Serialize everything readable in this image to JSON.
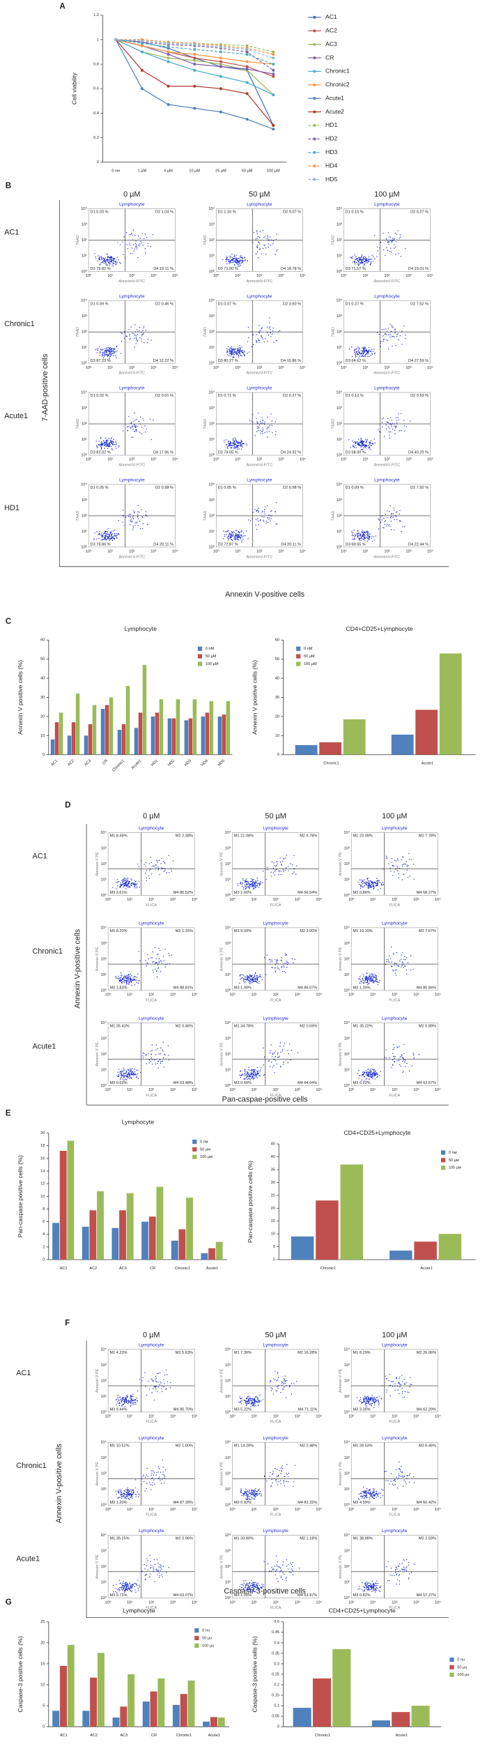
{
  "chart_data": [
    {
      "type": "line",
      "panel": "A",
      "ylabel": "Cell viability",
      "categories": [
        "0 nм",
        "1 µM",
        "5 µM",
        "10 µM",
        "25 µM",
        "50 µM",
        "100 µM"
      ],
      "ylim": [
        0,
        1.2
      ],
      "yticks": [
        0,
        0.2,
        0.4,
        0.6,
        0.8,
        1,
        1.2
      ],
      "legend": "right",
      "series": [
        {
          "name": "AC1",
          "color": "#4f6fb5",
          "style": "solid",
          "values": [
            1,
            0.98,
            0.93,
            0.85,
            0.78,
            0.75,
            0.3
          ]
        },
        {
          "name": "AC2",
          "color": "#c0504d",
          "style": "solid",
          "values": [
            1,
            0.95,
            0.9,
            0.85,
            0.82,
            0.78,
            0.7
          ]
        },
        {
          "name": "AC3",
          "color": "#9bbb59",
          "style": "solid",
          "values": [
            1,
            0.9,
            0.85,
            0.83,
            0.8,
            0.75,
            0.55
          ]
        },
        {
          "name": "CR",
          "color": "#7f5fa8",
          "style": "solid",
          "values": [
            1,
            0.95,
            0.88,
            0.8,
            0.78,
            0.76,
            0.72
          ]
        },
        {
          "name": "Chronic1",
          "color": "#4bacc6",
          "style": "solid",
          "values": [
            1,
            0.9,
            0.82,
            0.75,
            0.7,
            0.65,
            0.55
          ]
        },
        {
          "name": "Chronic2",
          "color": "#f79646",
          "style": "solid",
          "values": [
            1,
            0.95,
            0.9,
            0.88,
            0.85,
            0.82,
            0.8
          ]
        },
        {
          "name": "Acute1",
          "color": "#4f81bd",
          "style": "solid",
          "values": [
            1,
            0.6,
            0.47,
            0.44,
            0.41,
            0.35,
            0.27
          ]
        },
        {
          "name": "Acute2",
          "color": "#b03a2e",
          "style": "solid",
          "values": [
            1,
            0.75,
            0.62,
            0.62,
            0.6,
            0.56,
            0.3
          ]
        },
        {
          "name": "HD1",
          "color": "#9bbb59",
          "style": "dashed",
          "values": [
            1,
            1,
            0.98,
            0.97,
            0.96,
            0.95,
            0.9
          ]
        },
        {
          "name": "HD2",
          "color": "#8064a2",
          "style": "dashed",
          "values": [
            1,
            0.98,
            0.96,
            0.95,
            0.93,
            0.9,
            0.75
          ]
        },
        {
          "name": "HD3",
          "color": "#4bacc6",
          "style": "dashed",
          "values": [
            1,
            0.97,
            0.94,
            0.92,
            0.9,
            0.88,
            0.8
          ]
        },
        {
          "name": "HD4",
          "color": "#f79646",
          "style": "dashed",
          "values": [
            1,
            1,
            0.98,
            0.97,
            0.95,
            0.93,
            0.88
          ]
        },
        {
          "name": "HD5",
          "color": "#95b3d7",
          "style": "dashed",
          "values": [
            1,
            0.99,
            0.97,
            0.96,
            0.94,
            0.92,
            0.85
          ]
        }
      ]
    },
    {
      "type": "bar",
      "panel": "C",
      "title": "Lymphocyte",
      "ylabel": "Annexin V positive cells (%)",
      "categories": [
        "AC1",
        "AC2",
        "AC3",
        "CR",
        "Chronic1",
        "Acute1",
        "HD1",
        "HD2",
        "HD3",
        "HD4",
        "HD5"
      ],
      "xtick_rotation": 45,
      "ylim": [
        0,
        60
      ],
      "yticks": [
        0,
        10,
        20,
        30,
        40,
        50,
        60
      ],
      "legend": "upper right",
      "series": [
        {
          "name": "0 nM",
          "color": "#4f81bd",
          "values": [
            8,
            10,
            10,
            24,
            13,
            14,
            20,
            19,
            18,
            20,
            20
          ]
        },
        {
          "name": "50 µM",
          "color": "#c0504d",
          "values": [
            17,
            17,
            16,
            26,
            16,
            22,
            22,
            19,
            19,
            22,
            21
          ]
        },
        {
          "name": "100 µM",
          "color": "#9bbb59",
          "values": [
            22,
            32,
            26,
            30,
            36,
            47,
            29,
            29,
            29,
            28,
            28
          ]
        }
      ]
    },
    {
      "type": "bar",
      "title": "CD4+CD25+Lymphocyte",
      "ylabel": "Annexin V positive cells (%)",
      "categories": [
        "Chronic1",
        "Acute1"
      ],
      "ylim": [
        0,
        60
      ],
      "yticks": [
        0,
        10,
        20,
        30,
        40,
        50,
        60
      ],
      "legend": "upper left",
      "series": [
        {
          "name": "0 nM",
          "color": "#4f81bd",
          "values": [
            5,
            10.5
          ]
        },
        {
          "name": "50 µM",
          "color": "#c0504d",
          "values": [
            6.5,
            23.5
          ]
        },
        {
          "name": "100 µM",
          "color": "#9bbb59",
          "values": [
            18.5,
            53
          ]
        }
      ]
    },
    {
      "type": "bar",
      "panel": "E",
      "title": "Lymphocyte",
      "ylabel": "Pan-caspase positive cells (%)",
      "categories": [
        "AC1",
        "AC2",
        "AC3",
        "CR",
        "Chronic1",
        "Acute1"
      ],
      "ylim": [
        0,
        20
      ],
      "yticks": [
        0,
        2,
        4,
        6,
        8,
        10,
        12,
        14,
        16,
        18,
        20
      ],
      "legend": "upper right",
      "series": [
        {
          "name": "0 nм",
          "color": "#4f81bd",
          "values": [
            5.8,
            5.2,
            5,
            6,
            3,
            1
          ]
        },
        {
          "name": "50 µм",
          "color": "#c0504d",
          "values": [
            17.2,
            7.8,
            7.8,
            6.8,
            4.8,
            1.8
          ]
        },
        {
          "name": "100 µм",
          "color": "#9bbb59",
          "values": [
            18.8,
            10.8,
            10.5,
            11.5,
            9.8,
            2.8
          ]
        }
      ]
    },
    {
      "type": "bar",
      "title": "CD4+CD25+Lymphocyte",
      "ylabel": "Pan-caspase positive cells (%)",
      "categories": [
        "Chronic1",
        "Acute1"
      ],
      "ylim": [
        0,
        45
      ],
      "yticks": [
        0,
        5,
        10,
        15,
        20,
        25,
        30,
        35,
        40,
        45
      ],
      "legend": "upper right",
      "series": [
        {
          "name": "0 nм",
          "color": "#4f81bd",
          "values": [
            9,
            3.5
          ]
        },
        {
          "name": "50 µм",
          "color": "#c0504d",
          "values": [
            23,
            7
          ]
        },
        {
          "name": "100 µм",
          "color": "#9bbb59",
          "values": [
            37,
            10
          ]
        }
      ]
    },
    {
      "type": "bar",
      "panel": "G",
      "title": "Lymphocyte",
      "ylabel": "Caspase-3 positive cells (%)",
      "categories": [
        "AC1",
        "AC2",
        "AC3",
        "CR",
        "Chronic1",
        "Acute1"
      ],
      "ylim": [
        0,
        25
      ],
      "yticks": [
        0,
        5,
        10,
        15,
        20,
        25
      ],
      "legend": "upper right",
      "series": [
        {
          "name": "0 nu",
          "color": "#4f81bd",
          "values": [
            3.8,
            3.8,
            2.2,
            6,
            5.2,
            1.2
          ]
        },
        {
          "name": "50 µu",
          "color": "#c0504d",
          "values": [
            14.5,
            11.7,
            4.8,
            8.4,
            7.8,
            2.3
          ]
        },
        {
          "name": "100 µu",
          "color": "#9bbb59",
          "values": [
            19.5,
            17.6,
            12.5,
            11.5,
            11,
            2.2
          ]
        }
      ]
    },
    {
      "type": "bar",
      "title": "CD4+CD25+Lymphocyte",
      "ylabel": "Caspase-3 positive cells (%)",
      "categories": [
        "Chronic1",
        "Acute1"
      ],
      "ylim": [
        0,
        0.5
      ],
      "yticks": [
        0,
        0.05,
        0.1,
        0.15,
        0.2,
        0.25,
        0.3,
        0.35,
        0.4,
        0.45,
        0.5
      ],
      "legend": "right",
      "series": [
        {
          "name": "0 nu",
          "color": "#4f81bd",
          "values": [
            0.09,
            0.03
          ]
        },
        {
          "name": "50 µu",
          "color": "#c0504d",
          "values": [
            0.23,
            0.07
          ]
        },
        {
          "name": "100 µu",
          "color": "#9bbb59",
          "values": [
            0.37,
            0.1
          ]
        }
      ]
    }
  ],
  "flow_ticks": [
    "10⁰",
    "10¹",
    "10²",
    "10³",
    "10⁴"
  ],
  "flow_panels": [
    {
      "panel": "B",
      "columns": [
        "0 µM",
        "50 µM",
        "100 µM"
      ],
      "x_axis": "AnnexinV-FITC",
      "y_axis": "7AAD",
      "side_label": "7-AAD-positive cells",
      "bottom_label": "Annexin V-positive cells",
      "rows": [
        {
          "name": "AC1",
          "plots": [
            {
              "title": "Lymphocyte",
              "quadrants": [
                "D1 0.03 %",
                "D2 1.04 %",
                "D3 79.82 %",
                "D4 19.11 %"
              ]
            },
            {
              "title": "Lymphocyte",
              "quadrants": [
                "D1 1.16 %",
                "D2 9.07 %",
                "D3 71.00 %",
                "D4 18.78 %"
              ]
            },
            {
              "title": "Lymphocyte",
              "quadrants": [
                "D1 0.15 %",
                "D2 5.27 %",
                "D3 71.57 %",
                "D4 23.01 %"
              ]
            }
          ]
        },
        {
          "name": "Chronic1",
          "plots": [
            {
              "title": "Lymphocyte",
              "quadrants": [
                "D1 0.09 %",
                "D2 0.46 %",
                "D3 87.23 %",
                "D4 12.22 %"
              ]
            },
            {
              "title": "Lymphocyte",
              "quadrants": [
                "D1 0.07 %",
                "D2 3.60 %",
                "D3 80.27 %",
                "D4 15.86 %"
              ]
            },
            {
              "title": "Lymphocyte",
              "quadrants": [
                "D1 0.27 %",
                "D2 7.52 %",
                "D3 64.62 %",
                "D4 27.59 %"
              ]
            }
          ]
        },
        {
          "name": "Acute1",
          "plots": [
            {
              "title": "Lymphocyte",
              "quadrants": [
                "D1 0.02 %",
                "D2 0.01 %",
                "D3 82.02 %",
                "D4 17.96 %"
              ]
            },
            {
              "title": "Lymphocyte",
              "quadrants": [
                "D1 0.71 %",
                "D2 0.27 %",
                "D3 74.05 %",
                "D4 24.92 %"
              ]
            },
            {
              "title": "Lymphocyte",
              "quadrants": [
                "D1 0.12 %",
                "D2 0.59 %",
                "D3 58.00 %",
                "D4 40.29 %"
              ]
            }
          ]
        },
        {
          "name": "HD1",
          "plots": [
            {
              "title": "Lymphocyte",
              "quadrants": [
                "D1 0.05 %",
                "D2 0.98 %",
                "D3 78.86 %",
                "D4 20.11 %"
              ]
            },
            {
              "title": "Lymphocyte",
              "quadrants": [
                "D1 0.05 %",
                "D2 6.98 %",
                "D3 72.87 %",
                "D4 20.11 %"
              ]
            },
            {
              "title": "Lymphocyte",
              "quadrants": [
                "D1 0.09 %",
                "D2 7.92 %",
                "D3 69.55 %",
                "D4 22.44 %"
              ]
            }
          ]
        }
      ]
    },
    {
      "panel": "D",
      "columns": [
        "0 µM",
        "50 µM",
        "100 µM"
      ],
      "x_axis": "FLICA",
      "y_axis": "Annexin V PE",
      "side_label": "Annexin V-positive cells",
      "bottom_label": "Pan-caspae-positive cells",
      "rows": [
        {
          "name": "AC1",
          "plots": [
            {
              "title": "Lymphocyte",
              "quadrants": [
                "M1 8.49%",
                "M2 2.38%",
                "M3 3.61%",
                "M4 85.52%"
              ]
            },
            {
              "title": "Lymphocyte",
              "quadrants": [
                "M1 21.08%",
                "M2 9.78%",
                "M3 2.60%",
                "M4 66.54%"
              ]
            },
            {
              "title": "Lymphocyte",
              "quadrants": [
                "M1 23.09%",
                "M2 7.78%",
                "M3 0.86%",
                "M4 68.27%"
              ]
            }
          ]
        },
        {
          "name": "Chronic1",
          "plots": [
            {
              "title": "Lymphocyte",
              "quadrants": [
                "M1 8.20%",
                "M2 1.16%",
                "M3 1.83%",
                "M4 88.81%"
              ]
            },
            {
              "title": "Lymphocyte",
              "quadrants": [
                "M1 9.03%",
                "M2 3.00%",
                "M3 1.90%",
                "M4 86.07%"
              ]
            },
            {
              "title": "Lymphocyte",
              "quadrants": [
                "M1 10.10%",
                "M2 7.67%",
                "M3 1.39%",
                "M4 80.84%"
              ]
            }
          ]
        },
        {
          "name": "Acute1",
          "plots": [
            {
              "title": "Lymphocyte",
              "quadrants": [
                "M1 35.43%",
                "M2 0.46%",
                "M3 0.63%",
                "M4 63.48%"
              ]
            },
            {
              "title": "Lymphocyte",
              "quadrants": [
                "M1 34.78%",
                "M2 0.59%",
                "M3 0.59%",
                "M4 64.04%"
              ]
            },
            {
              "title": "Lymphocyte",
              "quadrants": [
                "M1 35.22%",
                "M2 0.89%",
                "M3 0.22%",
                "M4 63.67%"
              ]
            }
          ]
        }
      ]
    },
    {
      "panel": "F",
      "columns": [
        "0 µM",
        "50 µM",
        "100 µM"
      ],
      "x_axis": "FLICA",
      "y_axis": "Annexin V PE",
      "side_label": "Annexin V-positive cells",
      "bottom_label": "Caspase-3-positive cells",
      "rows": [
        {
          "name": "AC1",
          "plots": [
            {
              "title": "Lymphocyte",
              "quadrants": [
                "M1 4.23%",
                "M2 5.63%",
                "M3 9.44%",
                "M4 80.70%"
              ]
            },
            {
              "title": "Lymphocyte",
              "quadrants": [
                "M1 7.39%",
                "M2 16.28%",
                "M3 5.22%",
                "M4 71.11%"
              ]
            },
            {
              "title": "Lymphocyte",
              "quadrants": [
                "M1 8.29%",
                "M2 26.06%",
                "M3 3.36%",
                "M4 62.29%"
              ]
            }
          ]
        },
        {
          "name": "Chronic1",
          "plots": [
            {
              "title": "Lymphocyte",
              "quadrants": [
                "M1 10.52%",
                "M2 1.00%",
                "M3 1.20%",
                "M4 87.28%"
              ]
            },
            {
              "title": "Lymphocyte",
              "quadrants": [
                "M1 14.28%",
                "M2 2.48%",
                "M3 0.92%",
                "M4 82.32%"
              ]
            },
            {
              "title": "Lymphocyte",
              "quadrants": [
                "M1 28.53%",
                "M2 6.46%",
                "M3 4.59%",
                "M4 60.42%"
              ]
            }
          ]
        },
        {
          "name": "Acute1",
          "plots": [
            {
              "title": "Lymphocyte",
              "quadrants": [
                "M1 35.25%",
                "M2 0.96%",
                "M3 0.72%",
                "M4 63.07%"
              ]
            },
            {
              "title": "Lymphocyte",
              "quadrants": [
                "M1 33.80%",
                "M2 1.18%",
                "M3 1.05%",
                "M4 63.97%"
              ]
            },
            {
              "title": "Lymphocyte",
              "quadrants": [
                "M1 38.98%",
                "M2 2.93%",
                "M3 0.82%",
                "M4 57.27%"
              ]
            }
          ]
        }
      ]
    }
  ]
}
